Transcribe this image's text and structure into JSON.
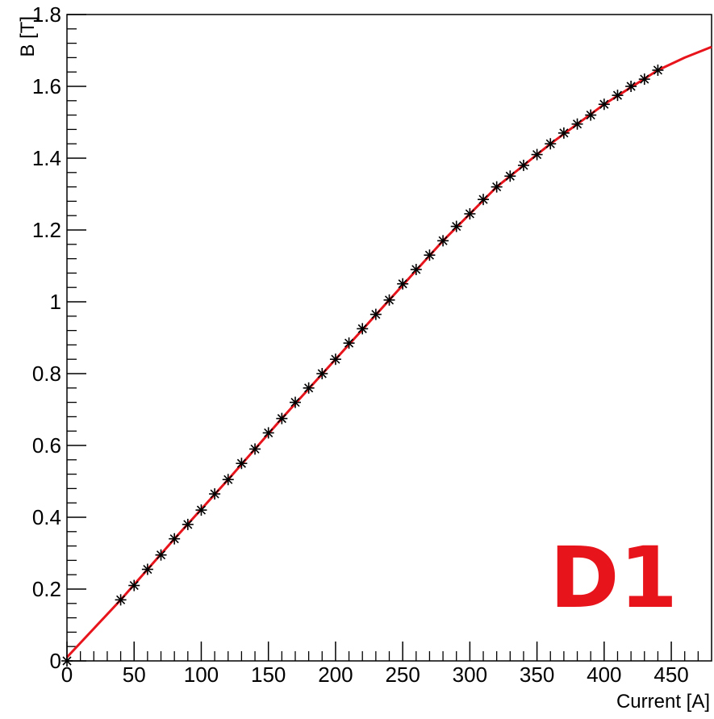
{
  "chart_data": {
    "type": "scatter",
    "title": "",
    "xlabel": "Current [A]",
    "ylabel": "B [T]",
    "xlim": [
      0,
      480
    ],
    "ylim": [
      0,
      1.8
    ],
    "grid": false,
    "x_major_ticks": [
      0,
      50,
      100,
      150,
      200,
      250,
      300,
      350,
      400,
      450
    ],
    "x_tick_labels": [
      "0",
      "50",
      "100",
      "150",
      "200",
      "250",
      "300",
      "350",
      "400",
      "450"
    ],
    "y_major_ticks": [
      0,
      0.2,
      0.4,
      0.6,
      0.8,
      1.0,
      1.2,
      1.4,
      1.6,
      1.8
    ],
    "y_tick_labels": [
      "0",
      "0.2",
      "0.4",
      "0.6",
      "0.8",
      "1",
      "1.2",
      "1.4",
      "1.6",
      "1.8"
    ],
    "series": [
      {
        "marker": "asterisk",
        "color": "#000000",
        "x": [
          0,
          40,
          50,
          60,
          70,
          80,
          90,
          100,
          110,
          120,
          130,
          140,
          150,
          160,
          170,
          180,
          190,
          200,
          210,
          220,
          230,
          240,
          250,
          260,
          270,
          280,
          290,
          300,
          310,
          320,
          330,
          340,
          350,
          360,
          370,
          380,
          390,
          400,
          410,
          420,
          430,
          440
        ],
        "y": [
          0,
          0.17,
          0.21,
          0.255,
          0.295,
          0.34,
          0.38,
          0.42,
          0.465,
          0.505,
          0.55,
          0.59,
          0.635,
          0.675,
          0.72,
          0.76,
          0.8,
          0.84,
          0.885,
          0.925,
          0.965,
          1.005,
          1.05,
          1.09,
          1.13,
          1.17,
          1.21,
          1.245,
          1.285,
          1.32,
          1.35,
          1.38,
          1.41,
          1.44,
          1.47,
          1.495,
          1.52,
          1.55,
          1.575,
          1.6,
          1.62,
          1.645
        ]
      },
      {
        "type": "line",
        "color": "#e8141c",
        "x": [
          0,
          40,
          80,
          120,
          160,
          200,
          240,
          280,
          320,
          360,
          400,
          440,
          460,
          480
        ],
        "y": [
          0.01,
          0.17,
          0.34,
          0.505,
          0.675,
          0.84,
          1.005,
          1.17,
          1.32,
          1.44,
          1.55,
          1.645,
          1.68,
          1.71
        ]
      }
    ],
    "annotation": {
      "text": "D1",
      "color": "#e8141c",
      "position": "bottom-right"
    }
  }
}
